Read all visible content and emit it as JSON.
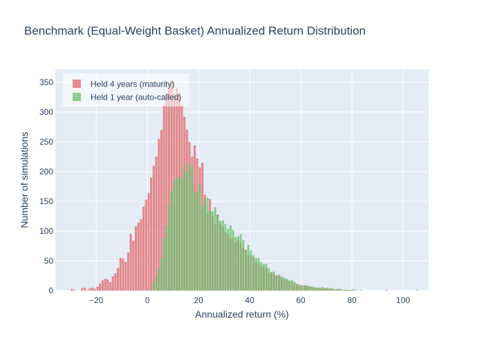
{
  "chart_data": {
    "type": "bar",
    "title": "Benchmark (Equal-Weight Basket) Annualized Return Distribution",
    "xlabel": "Annualized return (%)",
    "ylabel": "Number of simulations",
    "xlim": [
      -36,
      110
    ],
    "ylim": [
      0,
      372
    ],
    "xticks": [
      -20,
      0,
      20,
      40,
      60,
      80,
      100
    ],
    "xtick_labels": [
      "−20",
      "0",
      "20",
      "40",
      "60",
      "80",
      "100"
    ],
    "yticks": [
      0,
      50,
      100,
      150,
      200,
      250,
      300,
      350
    ],
    "bin_width": 1,
    "barmode": "overlay",
    "grid": true,
    "legend": "top-left",
    "series": [
      {
        "name": "Held 4 years (maturity)",
        "color": "#E06666",
        "opacity": 0.75,
        "x_start": -30,
        "values": [
          3,
          1,
          0,
          0,
          4,
          5,
          1,
          4,
          5,
          3,
          7,
          12,
          17,
          20,
          19,
          14,
          24,
          29,
          38,
          55,
          54,
          48,
          64,
          95,
          84,
          108,
          114,
          120,
          141,
          153,
          164,
          190,
          210,
          225,
          255,
          270,
          312,
          331,
          341,
          352,
          331,
          341,
          332,
          312,
          292,
          270,
          250,
          225,
          244,
          222,
          207,
          215,
          161,
          130,
          154,
          126,
          111,
          128,
          112,
          107,
          98,
          94,
          88,
          87,
          81,
          85,
          80,
          72,
          69,
          60,
          58,
          55,
          49,
          45,
          41,
          40,
          37,
          30,
          31,
          27,
          26,
          24,
          22,
          19,
          18,
          16,
          14,
          12,
          11,
          10,
          9,
          8,
          8,
          7,
          6,
          5,
          5,
          4,
          4,
          3,
          3,
          3,
          2,
          2,
          2,
          1,
          1,
          1,
          1,
          1,
          1,
          1,
          0,
          0,
          0,
          0,
          0,
          0,
          0,
          0,
          0,
          0,
          0,
          1,
          0,
          0,
          0,
          0,
          0,
          0,
          0,
          0,
          0,
          0,
          0,
          0,
          0,
          0,
          0,
          0
        ]
      },
      {
        "name": "Held 1 year (auto-called)",
        "color": "#6BBF6B",
        "opacity": 0.75,
        "x_start": 2,
        "values": [
          14,
          23,
          37,
          55,
          88,
          110,
          141,
          168,
          185,
          188,
          192,
          186,
          210,
          198,
          215,
          207,
          166,
          165,
          180,
          142,
          154,
          156,
          134,
          133,
          140,
          128,
          117,
          118,
          112,
          104,
          110,
          102,
          90,
          91,
          95,
          85,
          68,
          77,
          68,
          60,
          55,
          55,
          48,
          45,
          45,
          38,
          31,
          32,
          22,
          27,
          24,
          22,
          20,
          17,
          18,
          15,
          11,
          10,
          8,
          9,
          9,
          7,
          7,
          6,
          5,
          5,
          6,
          5,
          5,
          4,
          4,
          2,
          3,
          3,
          1,
          2,
          1,
          1,
          2,
          0,
          0,
          1,
          0,
          0,
          0,
          0,
          0,
          0,
          0,
          0,
          0,
          0,
          0,
          0,
          0,
          0,
          0,
          0,
          0,
          0,
          0,
          0,
          0,
          1,
          0,
          0,
          0
        ]
      }
    ]
  }
}
